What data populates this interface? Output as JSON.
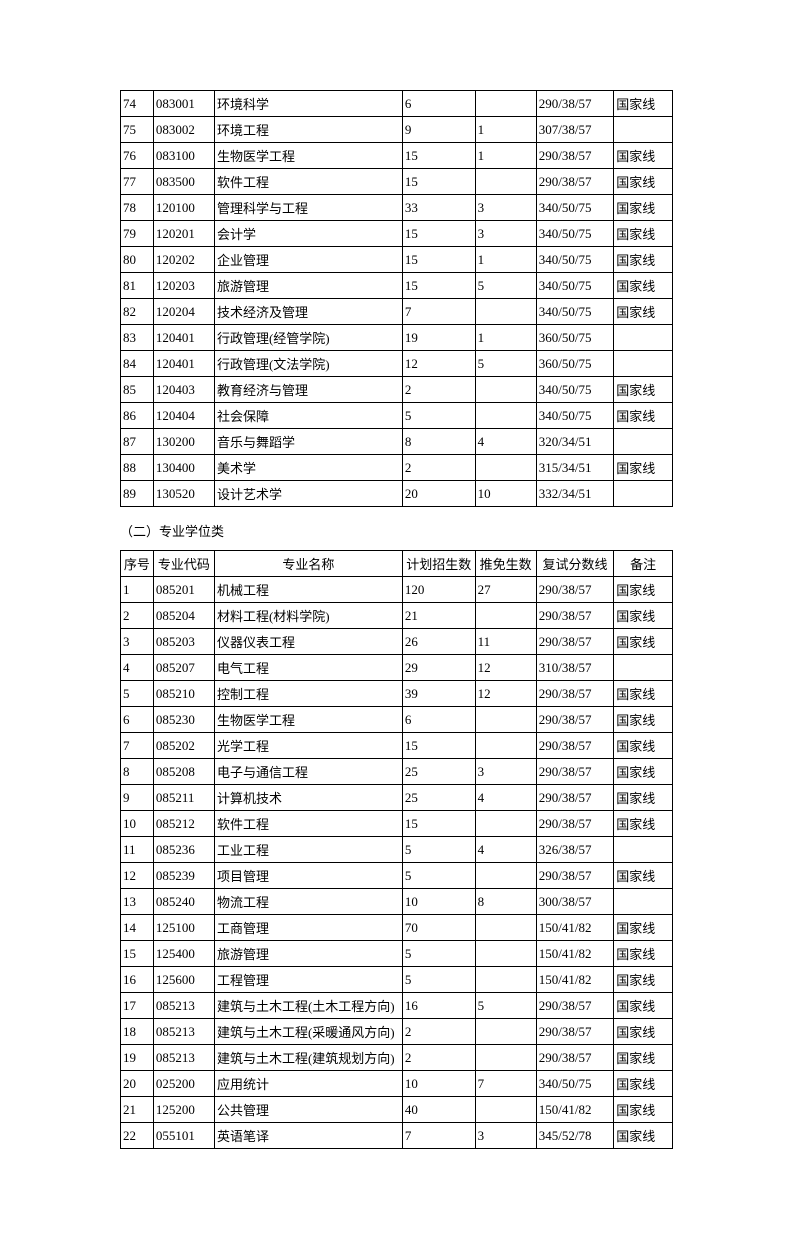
{
  "table1": {
    "rows": [
      [
        "74",
        "083001",
        "环境科学",
        "6",
        "",
        "290/38/57",
        "国家线"
      ],
      [
        "75",
        "083002",
        "环境工程",
        "9",
        "1",
        "307/38/57",
        ""
      ],
      [
        "76",
        "083100",
        "生物医学工程",
        "15",
        "1",
        "290/38/57",
        "国家线"
      ],
      [
        "77",
        "083500",
        "软件工程",
        "15",
        "",
        "290/38/57",
        "国家线"
      ],
      [
        "78",
        "120100",
        "管理科学与工程",
        "33",
        "3",
        "340/50/75",
        "国家线"
      ],
      [
        "79",
        "120201",
        "会计学",
        "15",
        "3",
        "340/50/75",
        "国家线"
      ],
      [
        "80",
        "120202",
        "企业管理",
        "15",
        "1",
        "340/50/75",
        "国家线"
      ],
      [
        "81",
        "120203",
        "旅游管理",
        "15",
        "5",
        "340/50/75",
        "国家线"
      ],
      [
        "82",
        "120204",
        "技术经济及管理",
        "7",
        "",
        "340/50/75",
        "国家线"
      ],
      [
        "83",
        "120401",
        "行政管理(经管学院)",
        "19",
        "1",
        "360/50/75",
        ""
      ],
      [
        "84",
        "120401",
        "行政管理(文法学院)",
        "12",
        "5",
        "360/50/75",
        ""
      ],
      [
        "85",
        "120403",
        "教育经济与管理",
        "2",
        "",
        "340/50/75",
        "国家线"
      ],
      [
        "86",
        "120404",
        "社会保障",
        "5",
        "",
        "340/50/75",
        "国家线"
      ],
      [
        "87",
        "130200",
        "音乐与舞蹈学",
        "8",
        "4",
        "320/34/51",
        ""
      ],
      [
        "88",
        "130400",
        "美术学",
        "2",
        "",
        "315/34/51",
        "国家线"
      ],
      [
        "89",
        "130520",
        "设计艺术学",
        "20",
        "10",
        "332/34/51",
        ""
      ]
    ]
  },
  "section2_title": "（二）专业学位类",
  "table2": {
    "headers": [
      "序号",
      "专业代码",
      "专业名称",
      "计划招生数",
      "推免生数",
      "复试分数线",
      "备注"
    ],
    "rows": [
      [
        "1",
        "085201",
        "机械工程",
        "120",
        "27",
        "290/38/57",
        "国家线"
      ],
      [
        "2",
        "085204",
        "材料工程(材料学院)",
        "21",
        "",
        "290/38/57",
        "国家线"
      ],
      [
        "3",
        "085203",
        "仪器仪表工程",
        "26",
        "11",
        "290/38/57",
        "国家线"
      ],
      [
        "4",
        "085207",
        "电气工程",
        "29",
        "12",
        "310/38/57",
        ""
      ],
      [
        "5",
        "085210",
        "控制工程",
        "39",
        "12",
        "290/38/57",
        "国家线"
      ],
      [
        "6",
        "085230",
        "生物医学工程",
        "6",
        "",
        "290/38/57",
        "国家线"
      ],
      [
        "7",
        "085202",
        "光学工程",
        "15",
        "",
        "290/38/57",
        "国家线"
      ],
      [
        "8",
        "085208",
        "电子与通信工程",
        "25",
        "3",
        "290/38/57",
        "国家线"
      ],
      [
        "9",
        "085211",
        "计算机技术",
        "25",
        "4",
        "290/38/57",
        "国家线"
      ],
      [
        "10",
        "085212",
        "软件工程",
        "15",
        "",
        "290/38/57",
        "国家线"
      ],
      [
        "11",
        "085236",
        "工业工程",
        "5",
        "4",
        "326/38/57",
        ""
      ],
      [
        "12",
        "085239",
        "项目管理",
        "5",
        "",
        "290/38/57",
        "国家线"
      ],
      [
        "13",
        "085240",
        "物流工程",
        "10",
        "8",
        "300/38/57",
        ""
      ],
      [
        "14",
        "125100",
        "工商管理",
        "70",
        "",
        "150/41/82",
        "国家线"
      ],
      [
        "15",
        "125400",
        "旅游管理",
        "5",
        "",
        "150/41/82",
        "国家线"
      ],
      [
        "16",
        "125600",
        "工程管理",
        "5",
        "",
        "150/41/82",
        "国家线"
      ],
      [
        "17",
        "085213",
        "建筑与土木工程(土木工程方向)",
        "16",
        "5",
        "290/38/57",
        "国家线"
      ],
      [
        "18",
        "085213",
        "建筑与土木工程(采暖通风方向)",
        "2",
        "",
        "290/38/57",
        "国家线"
      ],
      [
        "19",
        "085213",
        "建筑与土木工程(建筑规划方向)",
        "2",
        "",
        "290/38/57",
        "国家线"
      ],
      [
        "20",
        "025200",
        "应用统计",
        "10",
        "7",
        "340/50/75",
        "国家线"
      ],
      [
        "21",
        "125200",
        "公共管理",
        "40",
        "",
        "150/41/82",
        "国家线"
      ],
      [
        "22",
        "055101",
        "英语笔译",
        "7",
        "3",
        "345/52/78",
        "国家线"
      ]
    ]
  }
}
